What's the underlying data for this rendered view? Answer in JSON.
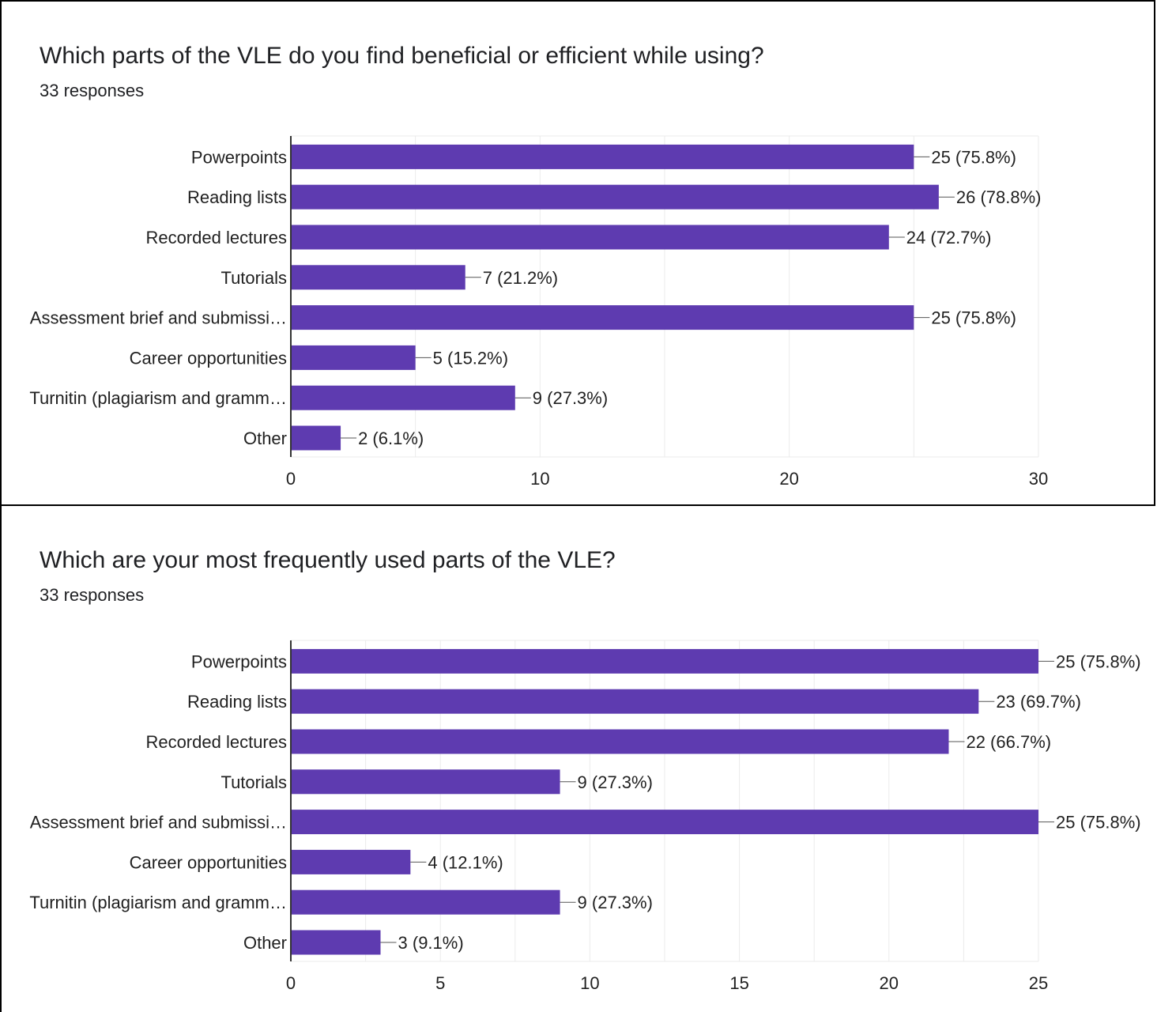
{
  "colors": {
    "bar": "#5e3bb0",
    "grid": "#ebebeb",
    "axis": "#333333",
    "leader": "#555555"
  },
  "charts": [
    {
      "title": "Which parts of the VLE do you find beneficial or efficient while using?",
      "subtitle": "33 responses",
      "chart_data": {
        "type": "bar",
        "orientation": "horizontal",
        "categories": [
          "Powerpoints",
          "Reading lists",
          "Recorded lectures",
          "Tutorials",
          "Assessment brief and submissi…",
          "Career opportunities",
          "Turnitin (plagiarism and gramm…",
          "Other"
        ],
        "values": [
          25,
          26,
          24,
          7,
          25,
          5,
          9,
          2
        ],
        "data_labels": [
          "25 (75.8%)",
          "26 (78.8%)",
          "24 (72.7%)",
          "7 (21.2%)",
          "25 (75.8%)",
          "5 (15.2%)",
          "9 (27.3%)",
          "2 (6.1%)"
        ],
        "xlim": [
          0,
          30
        ],
        "x_ticks": [
          0,
          10,
          20,
          30
        ],
        "minor_gridlines_every": 5,
        "grid": true,
        "legend": "none"
      }
    },
    {
      "title": "Which are your most frequently used parts of the VLE?",
      "subtitle": "33 responses",
      "chart_data": {
        "type": "bar",
        "orientation": "horizontal",
        "categories": [
          "Powerpoints",
          "Reading lists",
          "Recorded lectures",
          "Tutorials",
          "Assessment brief and submissi…",
          "Career opportunities",
          "Turnitin (plagiarism and gramm…",
          "Other"
        ],
        "values": [
          25,
          23,
          22,
          9,
          25,
          4,
          9,
          3
        ],
        "data_labels": [
          "25 (75.8%)",
          "23 (69.7%)",
          "22 (66.7%)",
          "9 (27.3%)",
          "25 (75.8%)",
          "4 (12.1%)",
          "9 (27.3%)",
          "3 (9.1%)"
        ],
        "xlim": [
          0,
          25
        ],
        "x_ticks": [
          0,
          5,
          10,
          15,
          20,
          25
        ],
        "minor_gridlines_every": 2.5,
        "grid": true,
        "legend": "none"
      }
    }
  ]
}
